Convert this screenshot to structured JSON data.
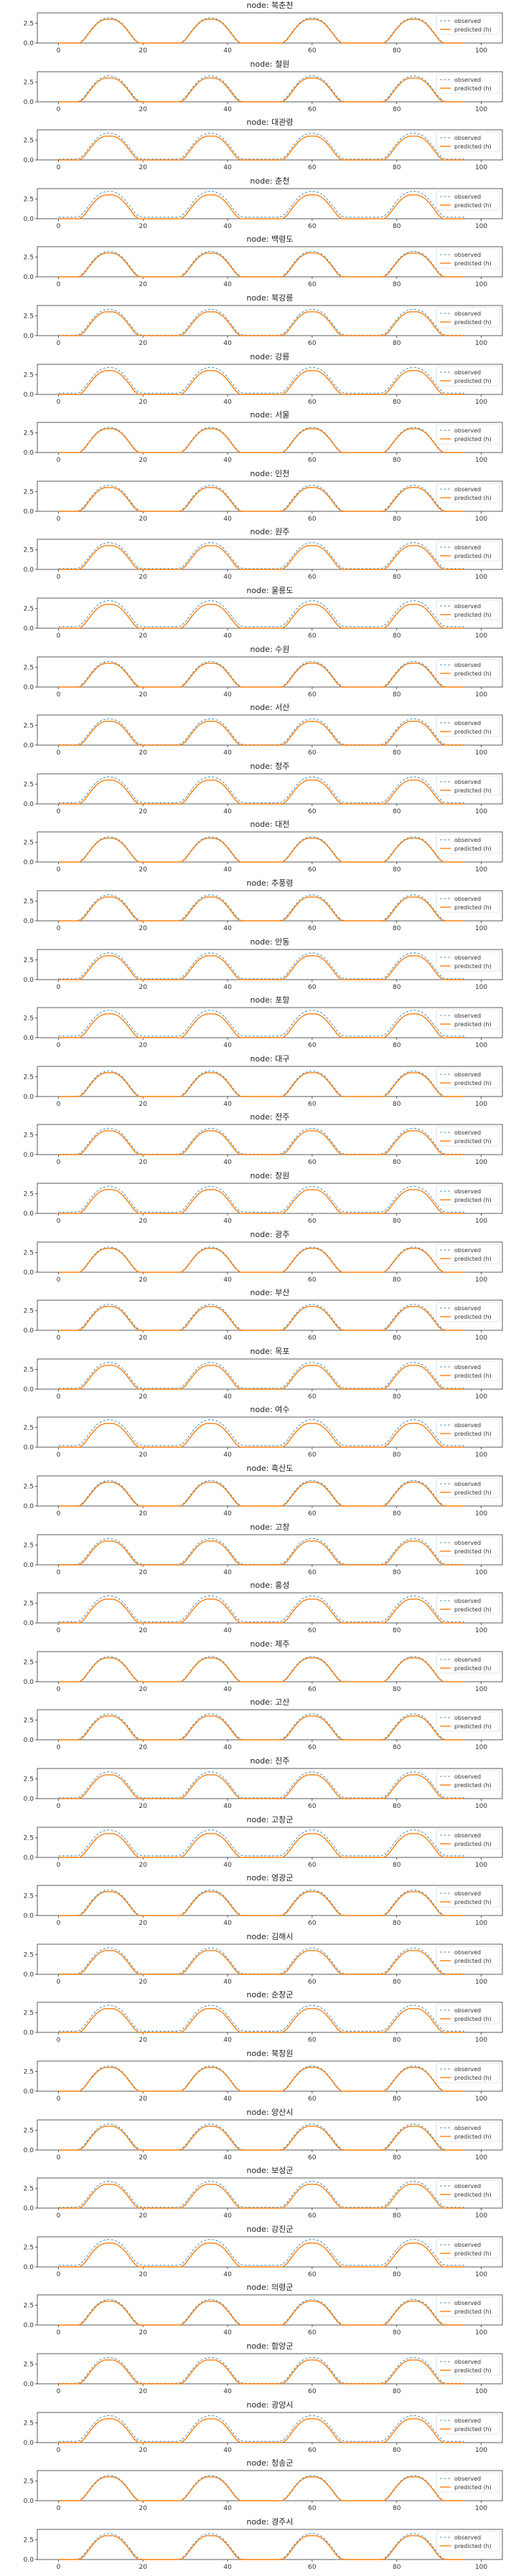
{
  "chart_data": {
    "type": "line",
    "legend_placement": "upper right",
    "grid": false,
    "xlim": [
      -5,
      105
    ],
    "ylim": [
      0,
      3.8
    ],
    "xticks": [
      0,
      20,
      40,
      60,
      80,
      100
    ],
    "yticks": [
      0.0,
      2.5
    ],
    "ytick_labels": [
      "0.0",
      "2.5"
    ],
    "xtick_labels": [
      "0",
      "20",
      "40",
      "60",
      "80",
      "100"
    ],
    "legend": [
      "observed",
      "predicted (h)"
    ],
    "title_prefix": "node: ",
    "colors": {
      "observed": "#4e93c9",
      "predicted": "#ff7f0e"
    },
    "observed_profile": {
      "x": [
        0,
        1,
        2,
        3,
        4,
        5,
        6,
        7,
        8,
        9,
        10,
        11,
        12,
        13,
        14,
        15,
        16,
        17,
        18,
        19,
        20,
        21,
        22,
        23,
        24
      ],
      "y": [
        0,
        0,
        0,
        0,
        0,
        0.1,
        0.6,
        1.3,
        2.0,
        2.6,
        3.0,
        3.2,
        3.3,
        3.2,
        3.0,
        2.6,
        2.0,
        1.3,
        0.6,
        0.1,
        0,
        0,
        0,
        0,
        0
      ]
    },
    "predicted_profile": {
      "x": [
        0,
        1,
        2,
        3,
        4,
        5,
        6,
        7,
        8,
        9,
        10,
        11,
        12,
        13,
        14,
        15,
        16,
        17,
        18,
        19,
        20,
        21,
        22,
        23,
        24
      ],
      "y": [
        0,
        0,
        0,
        0,
        0,
        0,
        0.4,
        1.1,
        1.8,
        2.4,
        2.8,
        3.0,
        3.0,
        3.0,
        2.8,
        2.4,
        1.8,
        1.1,
        0.4,
        0,
        0,
        0,
        0,
        0,
        0
      ]
    },
    "x_range": [
      0,
      96
    ],
    "nodes": [
      "북춘천",
      "철원",
      "대관령",
      "춘천",
      "백령도",
      "북강릉",
      "강릉",
      "서울",
      "인천",
      "원주",
      "울릉도",
      "수원",
      "서산",
      "청주",
      "대전",
      "추풍령",
      "안동",
      "포항",
      "대구",
      "전주",
      "창원",
      "광주",
      "부산",
      "목포",
      "여수",
      "흑산도",
      "고창",
      "홍성",
      "제주",
      "고산",
      "진주",
      "고창군",
      "영광군",
      "김해시",
      "순창군",
      "북창원",
      "양산시",
      "보성군",
      "강진군",
      "의령군",
      "함양군",
      "광양시",
      "청송군",
      "경주시"
    ]
  }
}
